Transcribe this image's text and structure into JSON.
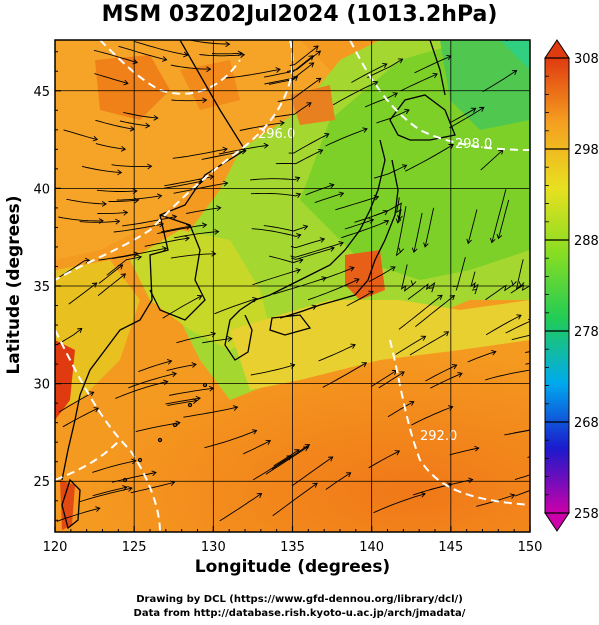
{
  "title": "MSM 03Z02Jul2024 (1013.2hPa)",
  "xlabel": "Longitude (degrees)",
  "ylabel": "Latitude  (degrees)",
  "credits": [
    "Drawing by DCL (https://www.gfd-dennou.org/library/dcl/)",
    "Data from http://database.rish.kyoto-u.ac.jp/arch/jmadata/"
  ],
  "chart_data": {
    "type": "heatmap",
    "title": "MSM 03Z02Jul2024 (1013.2hPa)",
    "xlabel": "Longitude (degrees)",
    "ylabel": "Latitude  (degrees)",
    "xlim": [
      120,
      150
    ],
    "ylim": [
      22.4,
      47.6
    ],
    "xticks": [
      120,
      125,
      130,
      135,
      140,
      145,
      150
    ],
    "yticks": [
      25,
      30,
      35,
      40,
      45
    ],
    "grid": true,
    "colorbar": {
      "min": 258,
      "max": 308,
      "ticks": [
        308,
        298,
        288,
        278,
        268,
        258
      ],
      "colors": [
        "#cc00aa",
        "#1a1acc",
        "#00aaee",
        "#22cc55",
        "#88dd22",
        "#e8e020",
        "#f5a020",
        "#e03a10"
      ]
    },
    "overlays": [
      "temperature shading",
      "streamlines",
      "contours",
      "coastlines"
    ],
    "contour_labels": [
      "296.0",
      "298.0",
      "292.0"
    ]
  }
}
